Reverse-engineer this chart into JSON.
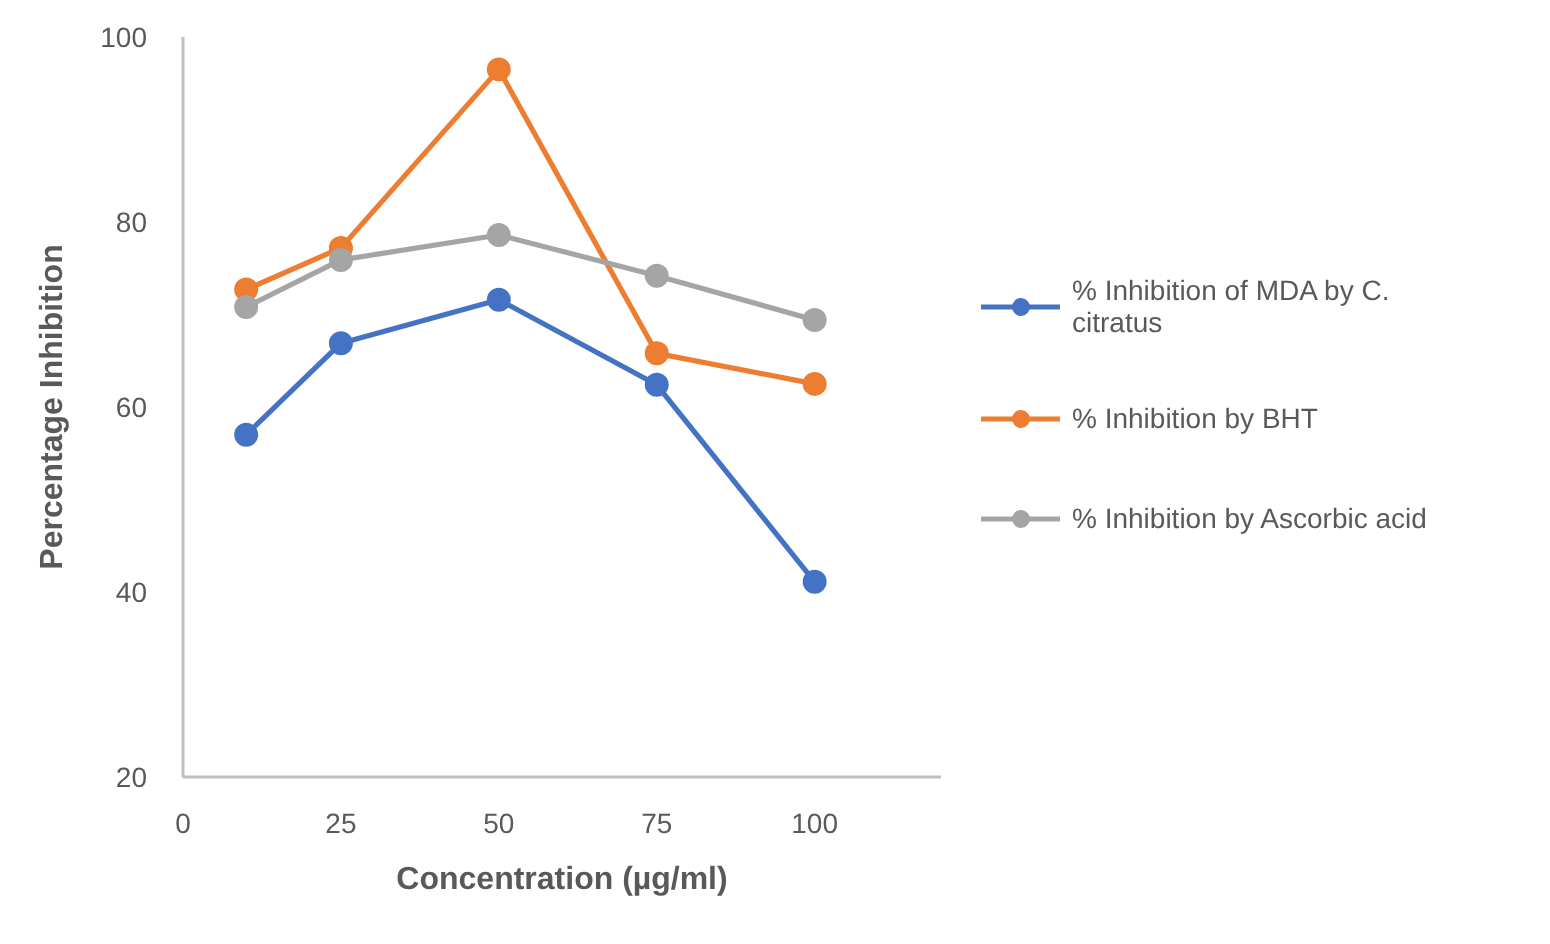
{
  "chart_data": {
    "type": "line",
    "xlabel": "Concentration (µg/ml)",
    "ylabel": "Percentage Inhibition",
    "x": [
      10,
      25,
      50,
      75,
      100
    ],
    "series": [
      {
        "name": "% Inhibition of MDA by C. citratus",
        "color": "#4472c4",
        "values": [
          57.0,
          66.9,
          71.6,
          62.4,
          41.1
        ]
      },
      {
        "name": "% Inhibition by BHT",
        "color": "#ed7d31",
        "values": [
          72.7,
          77.2,
          96.5,
          65.8,
          62.5
        ]
      },
      {
        "name": "% Inhibition by Ascorbic acid",
        "color": "#a5a5a5",
        "values": [
          70.8,
          75.9,
          78.6,
          74.2,
          69.4
        ]
      }
    ],
    "xlim": [
      0,
      120
    ],
    "ylim": [
      20,
      100
    ],
    "xticks": [
      0,
      25,
      50,
      75,
      100
    ],
    "yticks": [
      20,
      40,
      60,
      80,
      100
    ],
    "legend": "right",
    "marker": "circle",
    "line_style": "solid"
  }
}
